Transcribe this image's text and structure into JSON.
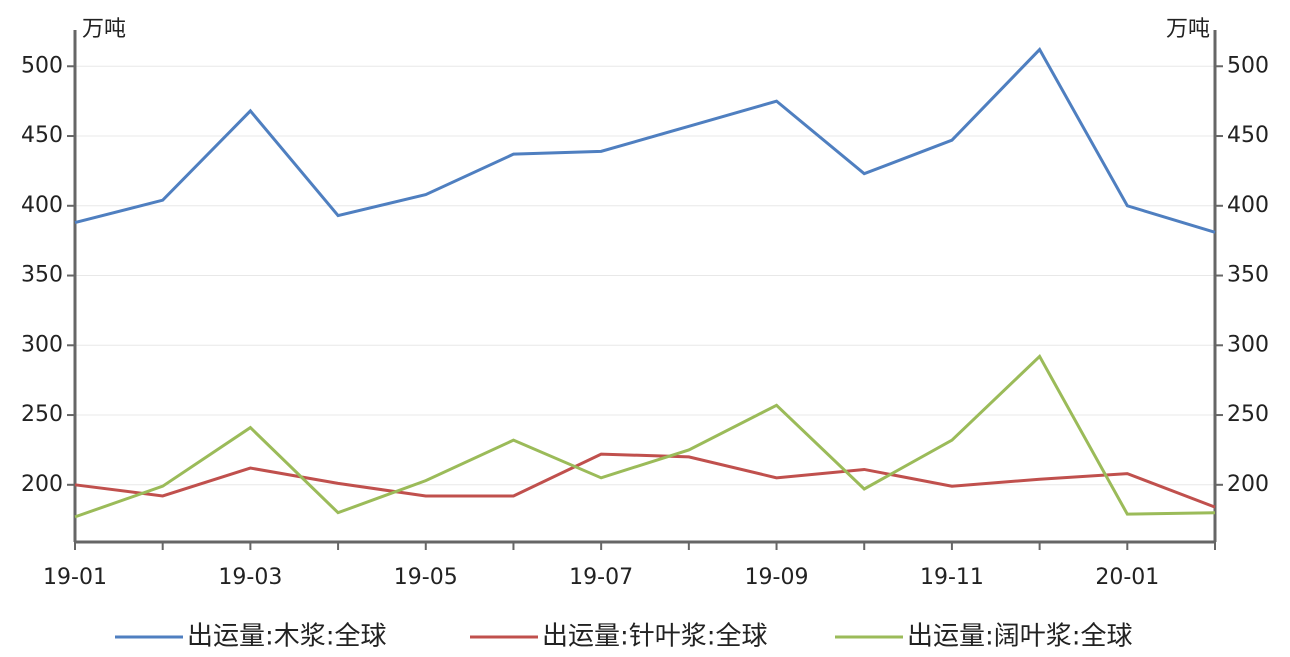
{
  "chart_data": {
    "type": "line",
    "y_unit_label": "万吨",
    "y2_unit_label": "万吨",
    "categories": [
      "19-01",
      null,
      "19-03",
      null,
      "19-05",
      null,
      "19-07",
      null,
      "19-09",
      null,
      "19-11",
      null,
      "20-01",
      null
    ],
    "series": [
      {
        "name": "出运量:木浆:全球",
        "color": "#4f7fc0",
        "values": [
          388,
          404,
          468,
          393,
          408,
          437,
          439,
          457,
          475,
          423,
          447,
          512,
          400,
          381
        ]
      },
      {
        "name": "出运量:针叶浆:全球",
        "color": "#c0504d",
        "values": [
          200,
          192,
          212,
          201,
          192,
          192,
          222,
          220,
          205,
          211,
          199,
          204,
          208,
          184
        ]
      },
      {
        "name": "出运量:阔叶浆:全球",
        "color": "#9bbb59",
        "values": [
          177,
          199,
          241,
          180,
          203,
          232,
          205,
          225,
          257,
          197,
          232,
          292,
          179,
          180
        ]
      }
    ],
    "ylim": [
      159,
      526
    ],
    "yticks": [
      200,
      250,
      300,
      350,
      400,
      450,
      500
    ],
    "y2lim": [
      159,
      526
    ],
    "y2ticks": [
      200,
      250,
      300,
      350,
      400,
      450,
      500
    ],
    "grid": true,
    "legend": "bottom"
  }
}
